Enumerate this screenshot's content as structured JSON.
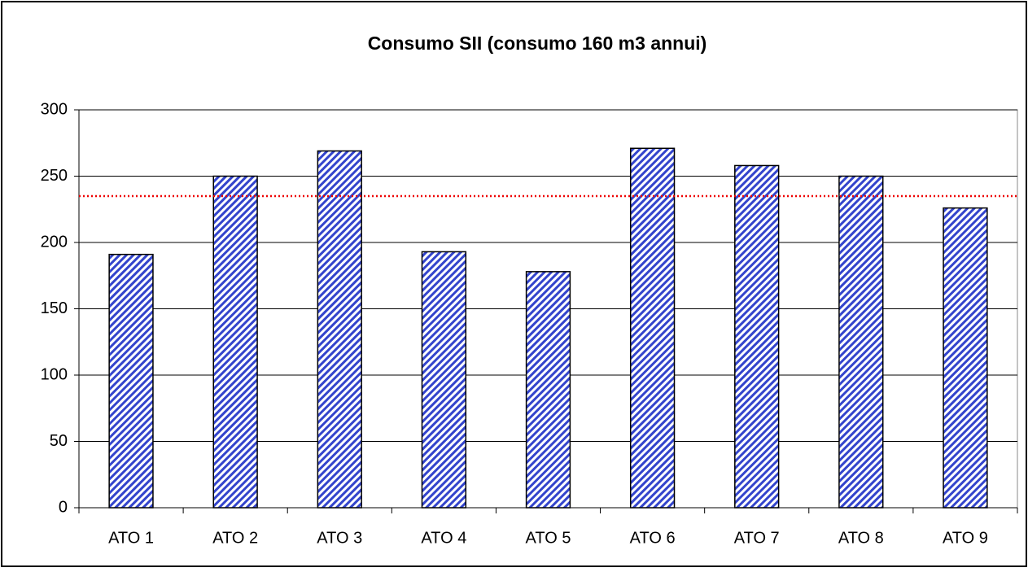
{
  "chart_data": {
    "type": "bar",
    "title": "Consumo SII (consumo 160 m3 annui)",
    "categories": [
      "ATO 1",
      "ATO 2",
      "ATO 3",
      "ATO 4",
      "ATO 5",
      "ATO 6",
      "ATO 7",
      "ATO 8",
      "ATO 9"
    ],
    "values": [
      191,
      250,
      269,
      193,
      178,
      271,
      258,
      250,
      226
    ],
    "color": "#3344cc",
    "reference_line": {
      "value": 235,
      "color": "#ee0000"
    },
    "ylim": [
      0,
      300
    ],
    "yticks": [
      0,
      50,
      100,
      150,
      200,
      250,
      300
    ],
    "grid": true
  }
}
